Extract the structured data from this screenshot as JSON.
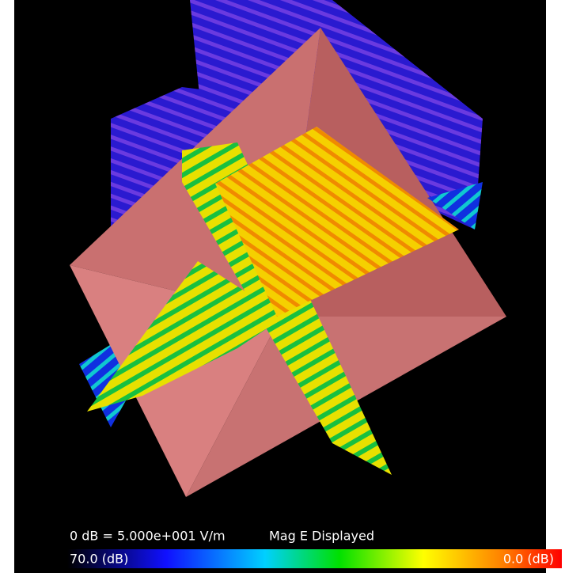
{
  "legend": {
    "reference": "0 dB = 5.000e+001 V/m",
    "quantity": "Mag E Displayed",
    "min_label": "70.0 (dB)",
    "max_label": "0.0 (dB)"
  }
}
